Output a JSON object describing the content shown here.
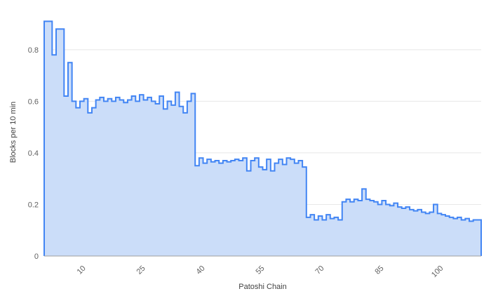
{
  "colors": {
    "line": "#4285f4",
    "fill": "#cbddf9",
    "grid": "#e8e8e8",
    "baseline": "#9e9e9e",
    "tick_text": "#616161",
    "title_text": "#424242",
    "background": "#ffffff"
  },
  "chart_data": {
    "type": "area",
    "step": true,
    "title": "",
    "xlabel": "Patoshi Chain",
    "ylabel": "Blocks per 10 min",
    "x_start": 1,
    "xlim": [
      0,
      110
    ],
    "ylim": [
      0,
      0.96
    ],
    "xticks": [
      10,
      25,
      40,
      55,
      70,
      85,
      100
    ],
    "yticks": [
      0,
      0.2,
      0.4,
      0.6,
      0.8
    ],
    "ytick_labels": [
      "0",
      "0.2",
      "0.4",
      "0.6",
      "0.8"
    ],
    "grid": true,
    "legend_position": "none",
    "values": [
      0.91,
      0.91,
      0.78,
      0.88,
      0.88,
      0.62,
      0.75,
      0.6,
      0.575,
      0.6,
      0.61,
      0.555,
      0.575,
      0.605,
      0.615,
      0.6,
      0.61,
      0.6,
      0.615,
      0.605,
      0.595,
      0.605,
      0.62,
      0.6,
      0.625,
      0.605,
      0.615,
      0.6,
      0.59,
      0.62,
      0.57,
      0.6,
      0.585,
      0.635,
      0.58,
      0.555,
      0.6,
      0.63,
      0.35,
      0.38,
      0.36,
      0.375,
      0.365,
      0.37,
      0.36,
      0.37,
      0.365,
      0.37,
      0.375,
      0.37,
      0.38,
      0.33,
      0.37,
      0.38,
      0.345,
      0.335,
      0.375,
      0.33,
      0.36,
      0.375,
      0.355,
      0.38,
      0.375,
      0.36,
      0.37,
      0.345,
      0.15,
      0.16,
      0.14,
      0.155,
      0.14,
      0.16,
      0.145,
      0.15,
      0.14,
      0.21,
      0.22,
      0.21,
      0.22,
      0.215,
      0.26,
      0.22,
      0.215,
      0.21,
      0.2,
      0.215,
      0.2,
      0.195,
      0.205,
      0.19,
      0.185,
      0.19,
      0.18,
      0.175,
      0.18,
      0.17,
      0.165,
      0.17,
      0.2,
      0.165,
      0.16,
      0.155,
      0.15,
      0.145,
      0.15,
      0.14,
      0.145,
      0.135,
      0.14,
      0.14
    ]
  }
}
